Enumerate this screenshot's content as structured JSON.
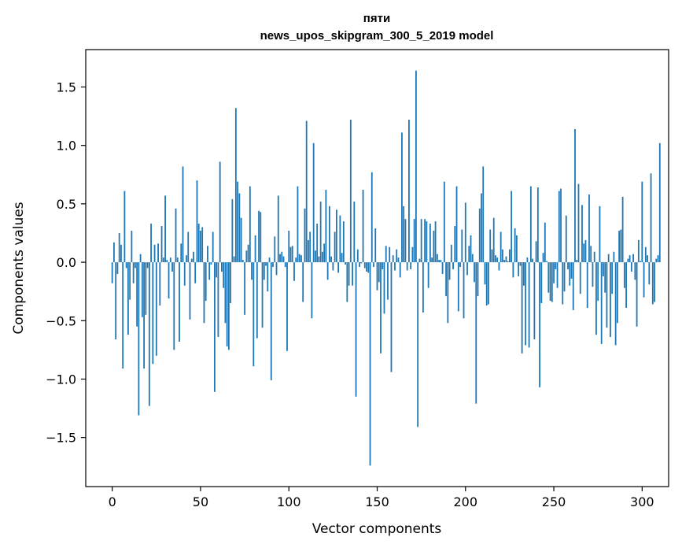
{
  "chart_data": {
    "type": "bar",
    "title": "пяти",
    "subtitle": "news_upos_skipgram_300_5_2019 model",
    "xlabel": "Vector components",
    "ylabel": "Components values",
    "xlim": [
      -15,
      315
    ],
    "ylim": [
      -1.92,
      1.82
    ],
    "xticks": [
      {
        "value": 0,
        "label": "0"
      },
      {
        "value": 50,
        "label": "50"
      },
      {
        "value": 100,
        "label": "100"
      },
      {
        "value": 150,
        "label": "150"
      },
      {
        "value": 200,
        "label": "200"
      },
      {
        "value": 250,
        "label": "250"
      },
      {
        "value": 300,
        "label": "300"
      }
    ],
    "yticks": [
      {
        "value": -1.5,
        "label": "−1.5"
      },
      {
        "value": -1.0,
        "label": "−1.0"
      },
      {
        "value": -0.5,
        "label": "−0.5"
      },
      {
        "value": 0.0,
        "label": "0.0"
      },
      {
        "value": 0.5,
        "label": "0.5"
      },
      {
        "value": 1.0,
        "label": "1.0"
      },
      {
        "value": 1.5,
        "label": "1.5"
      }
    ],
    "bar_color": "#1f77b4",
    "grid": false,
    "legend": "none",
    "values": [
      -0.18,
      0.17,
      -0.66,
      -0.1,
      0.25,
      0.15,
      -0.91,
      0.61,
      -0.05,
      -0.62,
      -0.32,
      0.27,
      -0.18,
      -0.05,
      -0.55,
      -1.31,
      0.07,
      -0.47,
      -0.91,
      -0.45,
      -0.05,
      -1.23,
      0.33,
      -0.87,
      0.15,
      -0.8,
      0.16,
      -0.37,
      0.31,
      0.04,
      0.57,
      0.02,
      -0.31,
      0.04,
      -0.08,
      -0.75,
      0.46,
      0.04,
      -0.68,
      0.16,
      0.82,
      -0.2,
      0.06,
      0.26,
      -0.49,
      0.03,
      0.09,
      -0.18,
      0.7,
      0.33,
      0.27,
      0.3,
      -0.52,
      -0.33,
      0.14,
      -0.15,
      -0.02,
      0.26,
      -1.11,
      -0.13,
      -0.64,
      0.86,
      -0.08,
      -0.22,
      -0.52,
      -0.72,
      -0.75,
      -0.35,
      0.54,
      0.05,
      1.32,
      0.69,
      0.59,
      0.38,
      0.02,
      -0.45,
      0.1,
      0.15,
      0.65,
      -0.15,
      -0.89,
      0.23,
      -0.65,
      0.44,
      0.43,
      -0.56,
      -0.15,
      -0.03,
      -0.25,
      0.04,
      -1.01,
      -0.04,
      0.22,
      -0.11,
      0.57,
      0.07,
      0.09,
      0.05,
      -0.04,
      -0.76,
      0.27,
      0.13,
      0.14,
      -0.16,
      0.04,
      0.65,
      0.07,
      0.06,
      -0.34,
      0.46,
      1.21,
      0.19,
      0.26,
      -0.48,
      1.02,
      0.1,
      0.33,
      0.05,
      0.52,
      0.09,
      0.16,
      0.62,
      -0.15,
      0.48,
      0.05,
      -0.07,
      0.26,
      0.45,
      -0.09,
      0.4,
      0.08,
      0.35,
      -0.02,
      -0.34,
      -0.2,
      1.22,
      -0.2,
      0.52,
      -1.15,
      0.11,
      -0.04,
      -0.01,
      0.62,
      -0.05,
      -0.08,
      -0.09,
      -1.74,
      0.77,
      -0.04,
      0.29,
      -0.24,
      -0.17,
      -0.78,
      -0.06,
      -0.44,
      0.14,
      -0.32,
      0.13,
      -0.94,
      0.06,
      -0.07,
      0.11,
      0.04,
      -0.13,
      1.11,
      0.48,
      0.37,
      -0.07,
      1.22,
      -0.06,
      0.13,
      0.37,
      1.64,
      -1.41,
      0.03,
      0.37,
      -0.43,
      0.37,
      0.35,
      -0.22,
      0.33,
      0.04,
      0.27,
      0.35,
      0.07,
      0.02,
      0.02,
      -0.1,
      0.69,
      -0.29,
      -0.52,
      -0.15,
      0.15,
      -0.06,
      0.31,
      0.65,
      -0.42,
      -0.04,
      0.28,
      -0.48,
      0.51,
      -0.11,
      0.14,
      0.23,
      0.07,
      -0.17,
      -1.21,
      -0.29,
      0.46,
      0.59,
      0.82,
      -0.19,
      -0.37,
      -0.36,
      0.28,
      0.11,
      0.38,
      0.06,
      0.04,
      -0.07,
      0.26,
      0.11,
      0.02,
      0.05,
      0.01,
      0.11,
      0.61,
      -0.13,
      0.29,
      0.23,
      -0.12,
      -0.03,
      -0.78,
      -0.2,
      -0.71,
      0.04,
      -0.73,
      0.65,
      0.03,
      -0.66,
      0.18,
      0.64,
      -1.07,
      -0.35,
      0.08,
      0.34,
      0.01,
      -0.26,
      -0.33,
      -0.34,
      -0.18,
      -0.06,
      -0.22,
      0.61,
      0.63,
      -0.36,
      -0.25,
      0.4,
      -0.06,
      -0.2,
      -0.14,
      -0.41,
      1.14,
      0.02,
      0.67,
      -0.27,
      0.49,
      0.16,
      0.19,
      -0.39,
      0.58,
      0.14,
      -0.21,
      0.09,
      -0.62,
      -0.33,
      0.48,
      -0.7,
      -0.12,
      -0.26,
      -0.56,
      0.07,
      -0.64,
      -0.27,
      0.09,
      -0.71,
      -0.52,
      0.27,
      0.28,
      0.56,
      -0.22,
      -0.39,
      0.03,
      0.06,
      -0.08,
      0.07,
      -0.15,
      -0.55,
      0.19,
      0.01,
      0.69,
      -0.3,
      0.13,
      0.06,
      -0.19,
      0.76,
      -0.36,
      -0.34,
      0.03,
      0.06,
      1.02
    ]
  }
}
